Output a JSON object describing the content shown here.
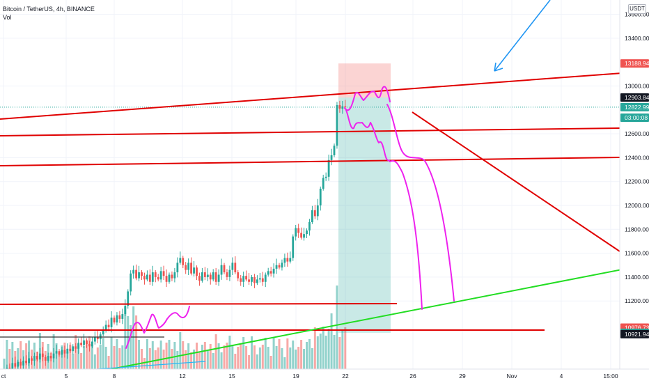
{
  "header": {
    "symbol_title": "Bitcoin / TetherUS, 4h, BINANCE",
    "volume_label": "Vol",
    "currency": "USDT"
  },
  "chart_data": {
    "type": "candlestick",
    "title": "Bitcoin / TetherUS, 4h, BINANCE",
    "currency": "USDT",
    "y_axis": {
      "ticks": [
        13600,
        13400,
        13000,
        12600,
        12400,
        12200,
        12000,
        11800,
        11600,
        11400,
        11200
      ],
      "ylim": [
        10800,
        13700
      ]
    },
    "x_axis": {
      "ticks": [
        "ct",
        "5",
        "8",
        "12",
        "15",
        "19",
        "22",
        "26",
        "29",
        "Nov",
        "4",
        "15:00"
      ]
    },
    "price_tags": [
      {
        "label": "13188.94",
        "value": 13188.94,
        "color": "#ef5350"
      },
      {
        "label": "12903.84",
        "value": 12903.84,
        "color": "#131722"
      },
      {
        "label": "12822.99",
        "value": 12822.99,
        "color": "#26a69a"
      },
      {
        "label": "03:00:08",
        "value": 12735,
        "color": "#26a69a"
      },
      {
        "label": "10976.73",
        "value": 10976.73,
        "color": "#ef5350"
      },
      {
        "label": "10933.73",
        "value": 10933.73,
        "color": "#26a69a"
      },
      {
        "label": "10921.94",
        "value": 10921.94,
        "color": "#131722"
      }
    ],
    "colors": {
      "up": "#26a69a",
      "down": "#ef5350",
      "trendline": "#e00000",
      "support": "#22dd22",
      "sketch": "#ee22ee",
      "arrow": "#2196f3"
    }
  }
}
